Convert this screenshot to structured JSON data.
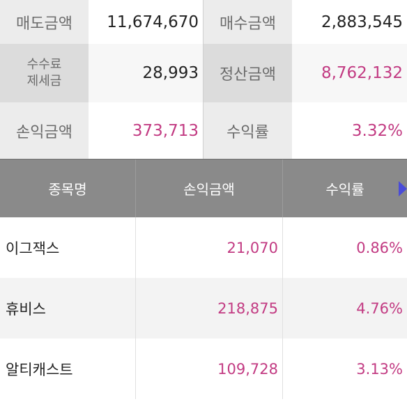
{
  "summary": {
    "sell_amount_label": "매도금액",
    "sell_amount_value": "11,674,670",
    "buy_amount_label": "매수금액",
    "buy_amount_value": "2,883,545",
    "fee_tax_label_line1": "수수료",
    "fee_tax_label_line2": "제세금",
    "fee_tax_value": "28,993",
    "settlement_label": "정산금액",
    "settlement_value": "8,762,132",
    "profit_label": "손익금액",
    "profit_value": "373,713",
    "return_label": "수익률",
    "return_value": "3.32%"
  },
  "table": {
    "headers": [
      "종목명",
      "손익금액",
      "수익률"
    ],
    "rows": [
      {
        "name": "이그잭스",
        "profit": "21,070",
        "rate": "0.86%"
      },
      {
        "name": "휴비스",
        "profit": "218,875",
        "rate": "4.76%"
      },
      {
        "name": "알티캐스트",
        "profit": "109,728",
        "rate": "3.13%"
      }
    ]
  },
  "colors": {
    "accent_pink": "#c23a82",
    "header_gray": "#8a8a8a",
    "arrow_blue": "#4a4cd8"
  },
  "icons": {
    "scroll_right": "arrow-right-icon"
  }
}
